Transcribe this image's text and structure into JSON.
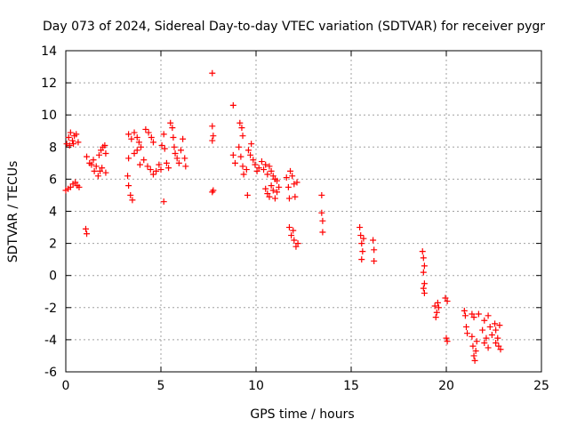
{
  "chart_data": {
    "type": "scatter",
    "title": "Day 073 of 2024, Sidereal Day-to-day VTEC variation (SDTVAR) for receiver pygr",
    "xlabel": "GPS time / hours",
    "ylabel": "SDTVAR / TECUs",
    "xlim": [
      0,
      25
    ],
    "ylim": [
      -6,
      14
    ],
    "xticks": [
      0,
      5,
      10,
      15,
      20,
      25
    ],
    "xtick_labels": [
      "0",
      "5",
      "10",
      "15",
      "20",
      "25"
    ],
    "yticks": [
      -6,
      -4,
      -2,
      0,
      2,
      4,
      6,
      8,
      10,
      12,
      14
    ],
    "ytick_labels": [
      "-6",
      "-4",
      "-2",
      "0",
      "2",
      "4",
      "6",
      "8",
      "10",
      "12",
      "14"
    ],
    "grid": true,
    "marker": "+",
    "series": [
      {
        "name": "SDTVAR",
        "color": "#ff0000",
        "points": [
          [
            0.05,
            8.2
          ],
          [
            0.15,
            8.6
          ],
          [
            0.25,
            8.9
          ],
          [
            0.35,
            8.4
          ],
          [
            0.45,
            8.7
          ],
          [
            0.55,
            8.8
          ],
          [
            0.65,
            8.3
          ],
          [
            0.0,
            5.3
          ],
          [
            0.12,
            5.4
          ],
          [
            0.25,
            5.5
          ],
          [
            0.38,
            5.7
          ],
          [
            0.5,
            5.8
          ],
          [
            0.6,
            5.6
          ],
          [
            0.7,
            5.5
          ],
          [
            0.2,
            8.1
          ],
          [
            0.4,
            8.2
          ],
          [
            1.05,
            2.9
          ],
          [
            1.1,
            2.6
          ],
          [
            1.1,
            7.4
          ],
          [
            1.25,
            7.0
          ],
          [
            1.35,
            6.9
          ],
          [
            1.45,
            7.2
          ],
          [
            1.5,
            6.5
          ],
          [
            1.6,
            6.8
          ],
          [
            1.7,
            6.2
          ],
          [
            1.8,
            6.5
          ],
          [
            1.9,
            6.7
          ],
          [
            1.75,
            7.5
          ],
          [
            1.85,
            7.8
          ],
          [
            1.95,
            8.0
          ],
          [
            2.05,
            8.1
          ],
          [
            2.1,
            6.4
          ],
          [
            2.1,
            7.6
          ],
          [
            3.25,
            6.2
          ],
          [
            3.3,
            5.6
          ],
          [
            3.4,
            5.0
          ],
          [
            3.5,
            4.7
          ],
          [
            3.3,
            7.3
          ],
          [
            3.3,
            8.8
          ],
          [
            3.45,
            8.5
          ],
          [
            3.6,
            8.9
          ],
          [
            3.75,
            8.6
          ],
          [
            3.85,
            8.3
          ],
          [
            3.6,
            7.6
          ],
          [
            3.75,
            7.8
          ],
          [
            3.9,
            6.9
          ],
          [
            3.95,
            8.0
          ],
          [
            4.1,
            7.2
          ],
          [
            4.2,
            9.1
          ],
          [
            4.35,
            8.9
          ],
          [
            4.5,
            8.6
          ],
          [
            4.6,
            8.3
          ],
          [
            4.3,
            6.8
          ],
          [
            4.45,
            6.6
          ],
          [
            4.6,
            6.3
          ],
          [
            4.75,
            6.5
          ],
          [
            4.9,
            6.9
          ],
          [
            5.0,
            6.6
          ],
          [
            5.05,
            8.1
          ],
          [
            5.15,
            8.8
          ],
          [
            5.2,
            7.9
          ],
          [
            5.15,
            4.6
          ],
          [
            5.3,
            7.0
          ],
          [
            5.4,
            6.7
          ],
          [
            5.5,
            9.5
          ],
          [
            5.6,
            9.2
          ],
          [
            5.65,
            8.6
          ],
          [
            5.7,
            8.0
          ],
          [
            5.75,
            7.6
          ],
          [
            5.85,
            7.3
          ],
          [
            5.95,
            7.0
          ],
          [
            6.05,
            7.8
          ],
          [
            6.15,
            8.5
          ],
          [
            6.25,
            7.3
          ],
          [
            6.3,
            6.8
          ],
          [
            7.7,
            12.6
          ],
          [
            7.7,
            9.3
          ],
          [
            7.75,
            8.7
          ],
          [
            7.7,
            8.4
          ],
          [
            7.7,
            5.2
          ],
          [
            7.75,
            5.3
          ],
          [
            8.8,
            10.6
          ],
          [
            8.8,
            7.5
          ],
          [
            8.9,
            7.0
          ],
          [
            9.15,
            9.5
          ],
          [
            9.25,
            9.2
          ],
          [
            9.3,
            8.7
          ],
          [
            9.1,
            8.0
          ],
          [
            9.2,
            7.4
          ],
          [
            9.3,
            6.8
          ],
          [
            9.35,
            6.3
          ],
          [
            9.5,
            6.6
          ],
          [
            9.55,
            5.0
          ],
          [
            9.6,
            7.8
          ],
          [
            9.7,
            7.5
          ],
          [
            9.75,
            8.2
          ],
          [
            9.85,
            7.2
          ],
          [
            9.95,
            6.9
          ],
          [
            10.05,
            6.5
          ],
          [
            10.15,
            6.7
          ],
          [
            10.3,
            7.1
          ],
          [
            10.4,
            6.6
          ],
          [
            10.5,
            6.9
          ],
          [
            10.6,
            6.3
          ],
          [
            10.7,
            6.8
          ],
          [
            10.8,
            6.5
          ],
          [
            10.9,
            6.2
          ],
          [
            11.0,
            6.0
          ],
          [
            11.1,
            5.9
          ],
          [
            10.5,
            5.4
          ],
          [
            10.6,
            5.1
          ],
          [
            10.7,
            4.9
          ],
          [
            10.8,
            5.6
          ],
          [
            10.9,
            5.3
          ],
          [
            11.0,
            4.8
          ],
          [
            11.1,
            5.2
          ],
          [
            11.2,
            5.5
          ],
          [
            11.6,
            6.1
          ],
          [
            11.7,
            5.5
          ],
          [
            11.75,
            4.8
          ],
          [
            11.8,
            6.5
          ],
          [
            11.9,
            6.2
          ],
          [
            12.0,
            5.7
          ],
          [
            12.05,
            4.9
          ],
          [
            12.15,
            5.8
          ],
          [
            11.75,
            3.0
          ],
          [
            11.85,
            2.5
          ],
          [
            11.95,
            2.8
          ],
          [
            12.0,
            2.2
          ],
          [
            12.1,
            1.8
          ],
          [
            12.2,
            2.0
          ],
          [
            13.45,
            5.0
          ],
          [
            13.45,
            3.9
          ],
          [
            13.5,
            3.4
          ],
          [
            13.5,
            2.7
          ],
          [
            15.45,
            3.0
          ],
          [
            15.5,
            2.5
          ],
          [
            15.55,
            2.0
          ],
          [
            15.6,
            1.5
          ],
          [
            15.55,
            1.0
          ],
          [
            15.65,
            2.3
          ],
          [
            16.15,
            2.2
          ],
          [
            16.2,
            1.6
          ],
          [
            16.2,
            0.9
          ],
          [
            18.75,
            1.5
          ],
          [
            18.8,
            1.1
          ],
          [
            18.85,
            0.6
          ],
          [
            18.8,
            0.2
          ],
          [
            18.85,
            -0.5
          ],
          [
            18.8,
            -0.8
          ],
          [
            18.85,
            -1.1
          ],
          [
            19.4,
            -1.9
          ],
          [
            19.5,
            -2.3
          ],
          [
            19.6,
            -2.0
          ],
          [
            19.45,
            -2.6
          ],
          [
            19.55,
            -1.7
          ],
          [
            19.95,
            -1.4
          ],
          [
            20.05,
            -1.6
          ],
          [
            20.0,
            -3.9
          ],
          [
            20.05,
            -4.1
          ],
          [
            20.95,
            -2.2
          ],
          [
            21.0,
            -2.5
          ],
          [
            21.05,
            -3.2
          ],
          [
            21.1,
            -3.6
          ],
          [
            21.35,
            -2.4
          ],
          [
            21.45,
            -2.6
          ],
          [
            21.35,
            -3.8
          ],
          [
            21.4,
            -4.4
          ],
          [
            21.45,
            -5.0
          ],
          [
            21.5,
            -5.3
          ],
          [
            21.6,
            -4.1
          ],
          [
            21.55,
            -4.7
          ],
          [
            21.7,
            -2.4
          ],
          [
            21.9,
            -3.4
          ],
          [
            22.0,
            -2.8
          ],
          [
            22.1,
            -3.9
          ],
          [
            22.2,
            -2.5
          ],
          [
            22.3,
            -3.2
          ],
          [
            22.0,
            -4.2
          ],
          [
            22.2,
            -4.5
          ],
          [
            22.4,
            -3.7
          ],
          [
            22.6,
            -3.4
          ],
          [
            22.7,
            -3.9
          ],
          [
            22.8,
            -3.1
          ],
          [
            22.75,
            -4.4
          ],
          [
            22.85,
            -4.6
          ],
          [
            22.6,
            -4.2
          ],
          [
            22.55,
            -3.0
          ]
        ]
      }
    ]
  }
}
